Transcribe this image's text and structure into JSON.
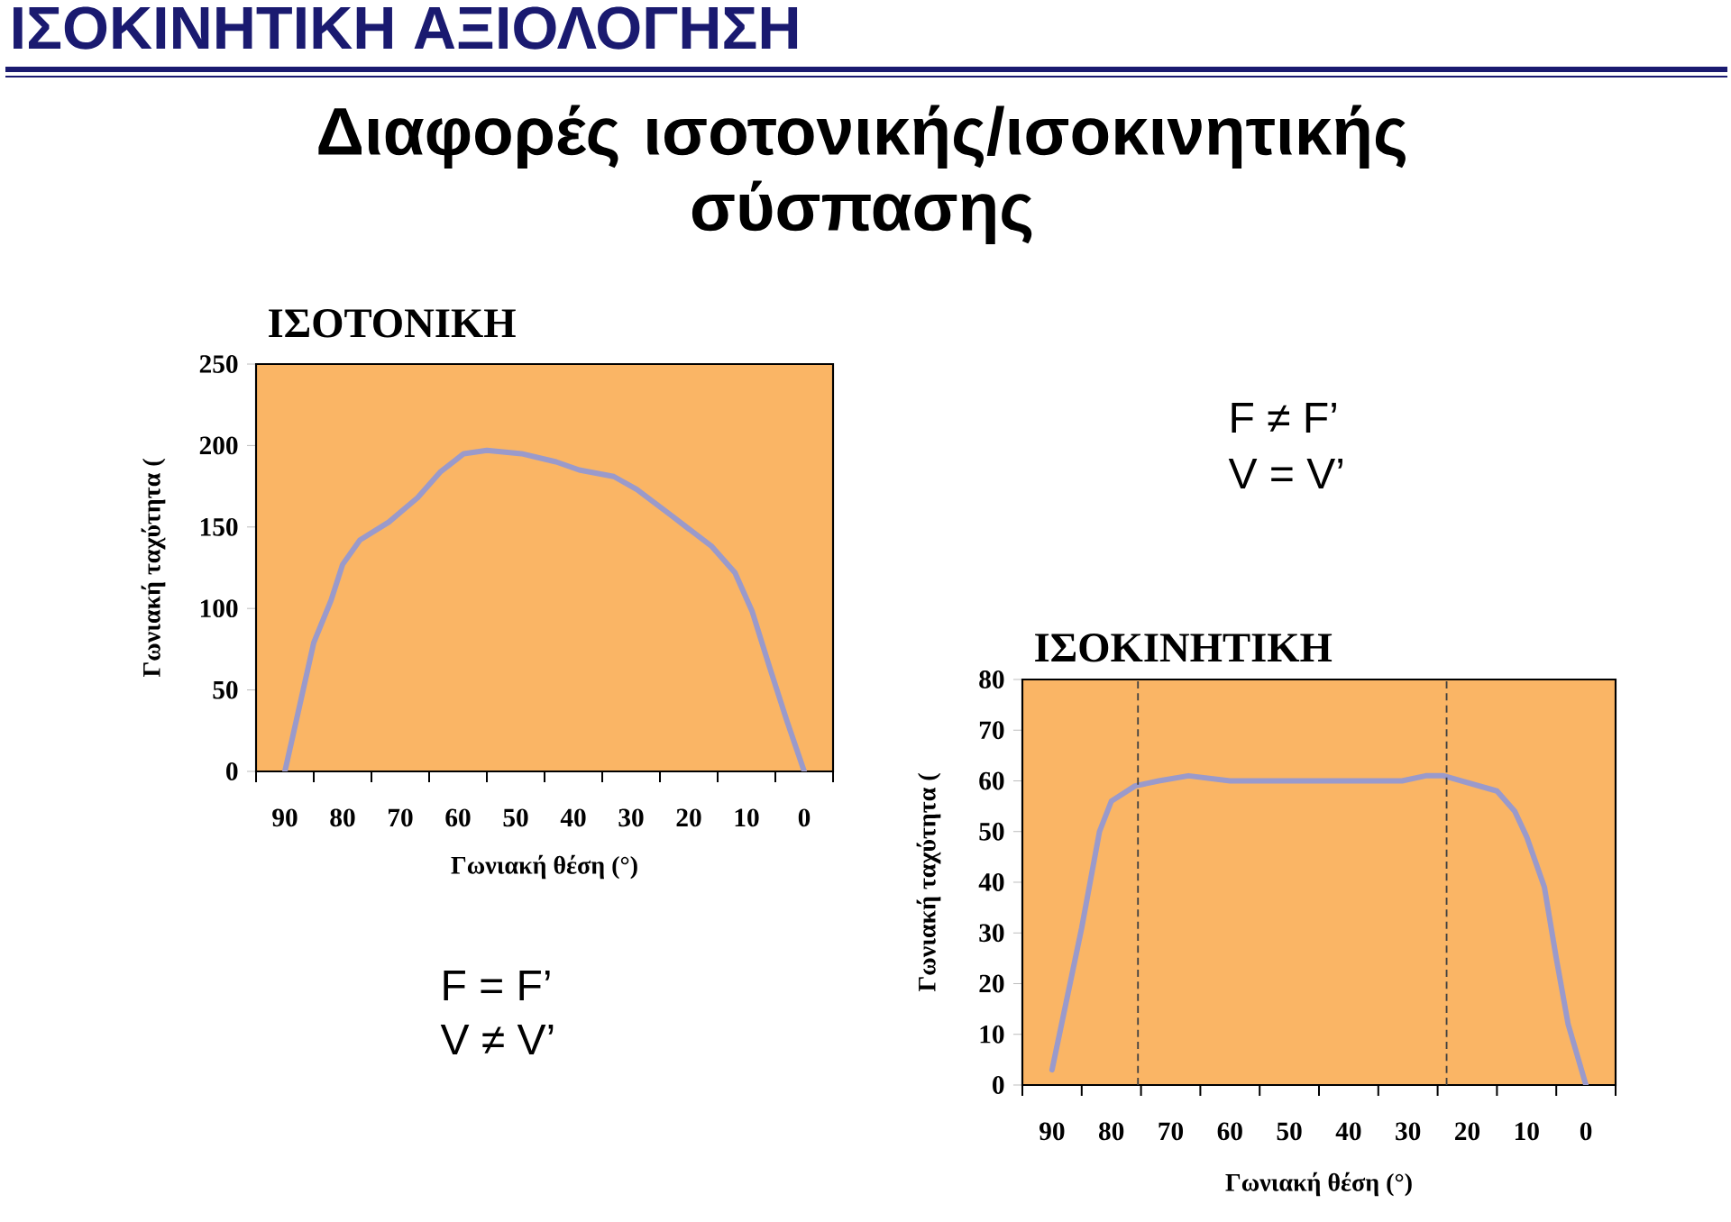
{
  "chart_data": [
    {
      "type": "line",
      "title": "ΙΣΟΤΟΝΙΚΗ",
      "xlabel": "Γωνιακή θέση (°)",
      "ylabel": "Γωνιακή ταχύτητα (",
      "annotations": [
        "ΙΣΟΚΙΝΗΤΙΚΗ ΑΞΙΟΛΟΓΗΣΗ",
        "Διαφορές ισοτονικής/ισοκινητικής σύσπασης",
        "F = F’",
        "V ≠ V’"
      ],
      "xlim": [
        95,
        -5
      ],
      "ylim": [
        0,
        250
      ],
      "xticks": [
        90,
        80,
        70,
        60,
        50,
        40,
        30,
        20,
        10,
        0,
        {
          "value": 95,
          "label": null
        },
        {
          "value": 85,
          "label": null
        },
        {
          "value": 75,
          "label": null
        },
        {
          "value": 65,
          "label": null
        },
        {
          "value": 55,
          "label": null
        },
        {
          "value": 45,
          "label": null
        },
        {
          "value": 35,
          "label": null
        },
        {
          "value": 25,
          "label": null
        },
        {
          "value": 15,
          "label": null
        },
        {
          "value": 5,
          "label": null
        },
        {
          "value": -5,
          "label": null
        }
      ],
      "yticks": [
        0,
        50,
        100,
        150,
        200,
        250
      ],
      "series": [
        {
          "color": "#9a9acb",
          "x": [
            90,
            85,
            82,
            80,
            77,
            72,
            67,
            63,
            59,
            55,
            49,
            43,
            39,
            33,
            29,
            23,
            16,
            12,
            9,
            6,
            3,
            0
          ],
          "values": [
            0,
            79,
            105,
            127,
            142,
            153,
            168,
            184,
            195,
            197,
            195,
            190,
            185,
            181,
            173,
            157,
            138,
            122,
            98,
            64,
            31,
            0
          ]
        }
      ]
    },
    {
      "type": "line",
      "title": "ΙΣΟΚΙΝΗΤΙΚΗ",
      "xlabel": "Γωνιακή θέση (°)",
      "ylabel": "Γωνιακή ταχύτητα (",
      "annotations": [
        "F ≠ F’",
        "V = V’"
      ],
      "xlim": [
        95,
        -5
      ],
      "ylim": [
        0,
        80
      ],
      "xticks": [
        90,
        80,
        70,
        60,
        50,
        40,
        30,
        20,
        10,
        0,
        {
          "value": 95,
          "label": null
        },
        {
          "value": 85,
          "label": null
        },
        {
          "value": 75,
          "label": null
        },
        {
          "value": 65,
          "label": null
        },
        {
          "value": 55,
          "label": null
        },
        {
          "value": 45,
          "label": null
        },
        {
          "value": 35,
          "label": null
        },
        {
          "value": 25,
          "label": null
        },
        {
          "value": 15,
          "label": null
        },
        {
          "value": 5,
          "label": null
        },
        {
          "value": -5,
          "label": null
        }
      ],
      "yticks": [
        0,
        10,
        20,
        30,
        40,
        50,
        60,
        70,
        80
      ],
      "ref_lines": [
        {
          "axis": "x",
          "value": 75.5,
          "color": "#404040",
          "line_style": "dashed"
        },
        {
          "axis": "x",
          "value": 23.5,
          "color": "#404040",
          "line_style": "dashed"
        }
      ],
      "series": [
        {
          "color": "#9a9acb",
          "x": [
            90,
            85,
            82,
            80,
            76,
            72,
            67,
            60,
            50,
            40,
            31,
            27,
            24,
            21,
            18,
            15,
            12,
            10,
            7,
            5,
            3,
            0
          ],
          "values": [
            3,
            31,
            50,
            56,
            59,
            60,
            61,
            60,
            60,
            60,
            60,
            61,
            61,
            60,
            59,
            58,
            54,
            49,
            39,
            25,
            12,
            0
          ]
        }
      ]
    }
  ]
}
